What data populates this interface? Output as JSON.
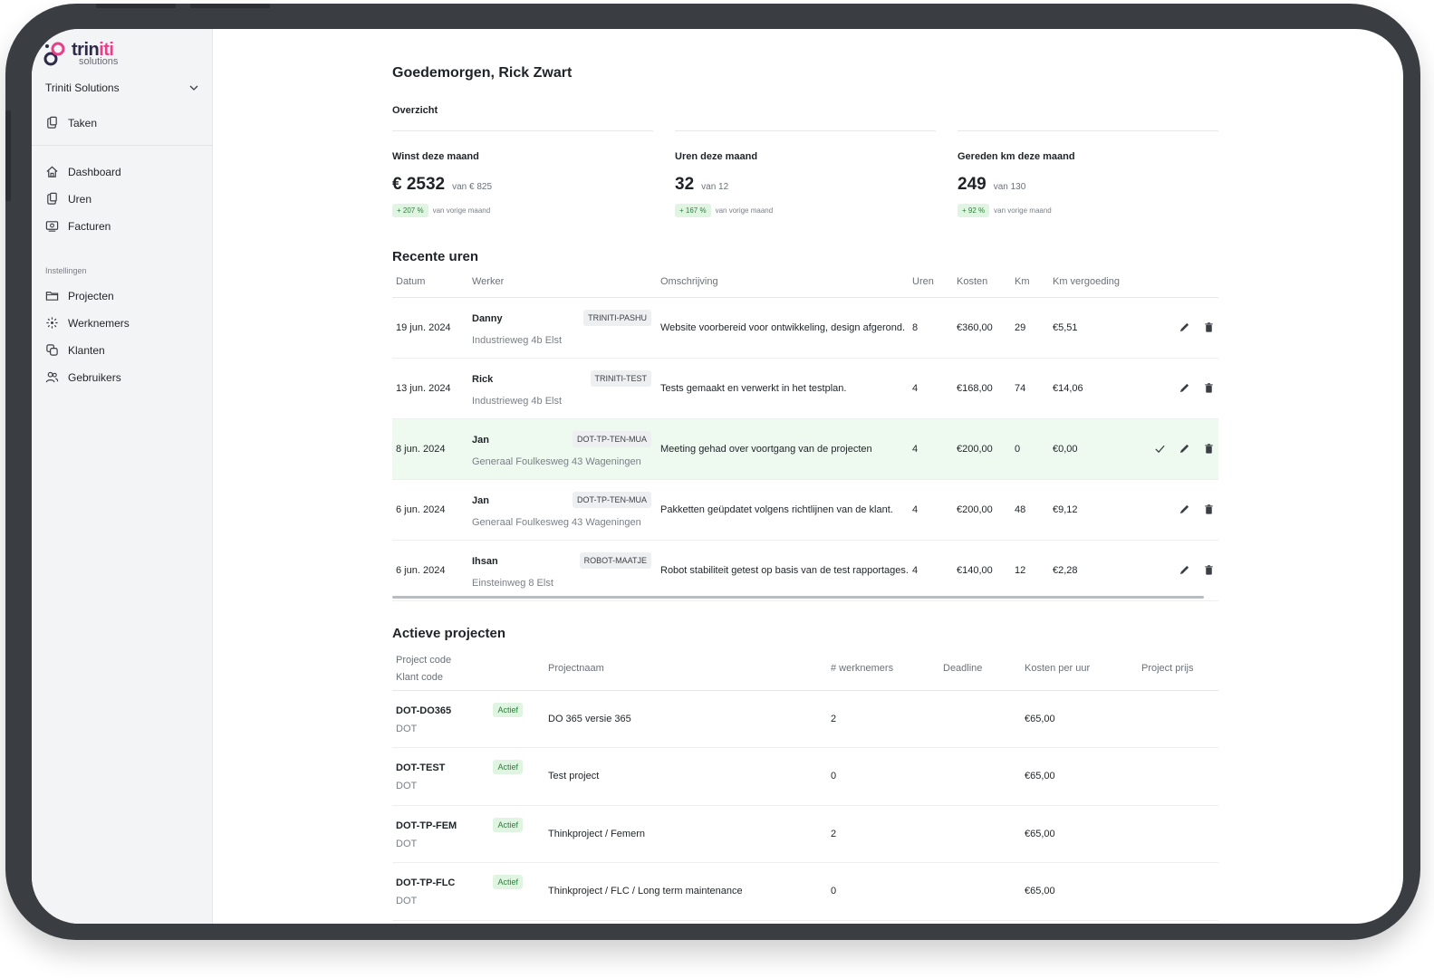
{
  "brand": {
    "name_part1": "trin",
    "name_part2": "iti",
    "tagline": "solutions",
    "accent": "#e6408a",
    "dark": "#2d2a4a"
  },
  "sidebar": {
    "org_name": "Triniti Solutions",
    "top_item": {
      "label": "Taken",
      "icon": "clipboard-icon"
    },
    "items": [
      {
        "label": "Dashboard",
        "icon": "home-icon"
      },
      {
        "label": "Uren",
        "icon": "clipboard-icon"
      },
      {
        "label": "Facturen",
        "icon": "invoice-icon"
      }
    ],
    "settings_label": "Instellingen",
    "settings_items": [
      {
        "label": "Projecten",
        "icon": "folder-icon"
      },
      {
        "label": "Werknemers",
        "icon": "sparkle-icon"
      },
      {
        "label": "Klanten",
        "icon": "copy-icon"
      },
      {
        "label": "Gebruikers",
        "icon": "users-icon"
      }
    ]
  },
  "main": {
    "greeting": "Goedemorgen, Rick Zwart",
    "overview_label": "Overzicht",
    "stats": [
      {
        "title": "Winst deze maand",
        "value": "€ 2532",
        "of": "van € 825",
        "change": "+ 207 %",
        "change_label": "van vorige maand"
      },
      {
        "title": "Uren deze maand",
        "value": "32",
        "of": "van 12",
        "change": "+ 167 %",
        "change_label": "van vorige maand"
      },
      {
        "title": "Gereden km deze maand",
        "value": "249",
        "of": "van 130",
        "change": "+ 92 %",
        "change_label": "van vorige maand"
      }
    ]
  },
  "recent_hours": {
    "title": "Recente uren",
    "columns": [
      "Datum",
      "Werker",
      "Omschrijving",
      "Uren",
      "Kosten",
      "Km",
      "Km vergoeding"
    ],
    "rows": [
      {
        "datum": "19 jun. 2024",
        "werker": "Danny",
        "adres": "Industrieweg 4b Elst",
        "project": "TRINITI-PASHU",
        "omschrijving": "Website voorbereid voor ontwikkeling, design afgerond.",
        "uren": "8",
        "kosten": "€360,00",
        "km": "29",
        "km_vergoeding": "€5,51"
      },
      {
        "datum": "13 jun. 2024",
        "werker": "Rick",
        "adres": "Industrieweg 4b Elst",
        "project": "TRINITI-TEST",
        "omschrijving": "Tests gemaakt en verwerkt in het testplan.",
        "uren": "4",
        "kosten": "€168,00",
        "km": "74",
        "km_vergoeding": "€14,06"
      },
      {
        "datum": "8 jun. 2024",
        "werker": "Jan",
        "adres": "Generaal Foulkesweg 43 Wageningen",
        "project": "DOT-TP-TEN-MUA",
        "omschrijving": "Meeting gehad over voortgang van de projecten",
        "uren": "4",
        "kosten": "€200,00",
        "km": "0",
        "km_vergoeding": "€0,00"
      },
      {
        "datum": "6 jun. 2024",
        "werker": "Jan",
        "adres": "Generaal Foulkesweg 43 Wageningen",
        "project": "DOT-TP-TEN-MUA",
        "omschrijving": "Pakketten geüpdatet volgens richtlijnen van de klant.",
        "uren": "4",
        "kosten": "€200,00",
        "km": "48",
        "km_vergoeding": "€9,12"
      },
      {
        "datum": "6 jun. 2024",
        "werker": "Ihsan",
        "adres": "Einsteinweg 8 Elst",
        "project": "ROBOT-MAATJE",
        "omschrijving": "Robot stabiliteit getest op basis van de test rapportages.",
        "uren": "4",
        "kosten": "€140,00",
        "km": "12",
        "km_vergoeding": "€2,28"
      }
    ]
  },
  "active_projects": {
    "title": "Actieve projecten",
    "columns": {
      "code": "Project code",
      "klant": "Klant code",
      "naam": "Projectnaam",
      "werknemers": "# werknemers",
      "deadline": "Deadline",
      "kosten": "Kosten per uur",
      "prijs": "Project prijs"
    },
    "status_label": "Actief",
    "rows": [
      {
        "code": "DOT-DO365",
        "klant": "DOT",
        "naam": "DO 365 versie 365",
        "werknemers": "2",
        "deadline": "",
        "kosten": "€65,00",
        "prijs": ""
      },
      {
        "code": "DOT-TEST",
        "klant": "DOT",
        "naam": "Test project",
        "werknemers": "0",
        "deadline": "",
        "kosten": "€65,00",
        "prijs": ""
      },
      {
        "code": "DOT-TP-FEM",
        "klant": "DOT",
        "naam": "Thinkproject / Femern",
        "werknemers": "2",
        "deadline": "",
        "kosten": "€65,00",
        "prijs": ""
      },
      {
        "code": "DOT-TP-FLC",
        "klant": "DOT",
        "naam": "Thinkproject / FLC / Long term maintenance",
        "werknemers": "0",
        "deadline": "",
        "kosten": "€65,00",
        "prijs": ""
      }
    ]
  }
}
